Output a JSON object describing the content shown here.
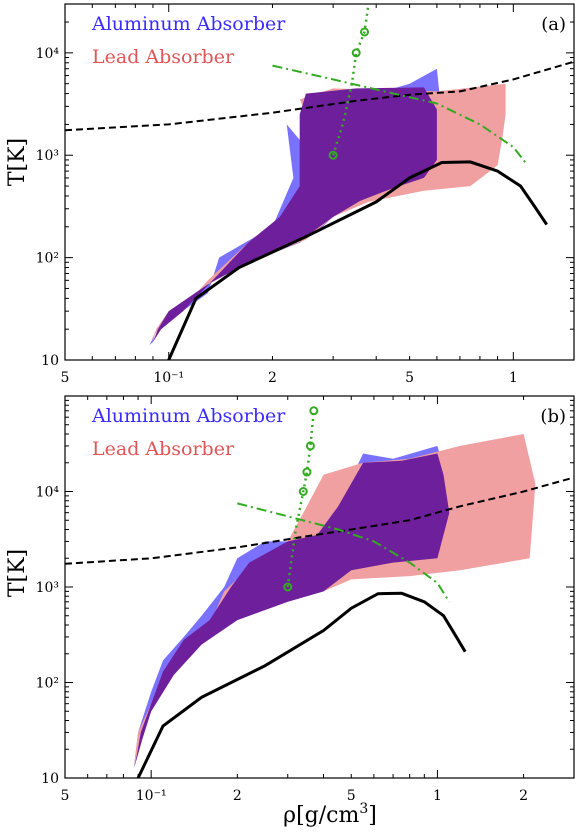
{
  "figure": {
    "xlabel_main": "ρ[g/cm",
    "xlabel_sup": "3",
    "xlabel_close": "]",
    "ylabel": "T[K]"
  },
  "colors": {
    "aluminum": "#7a72ff",
    "lead": "#f0a0a0",
    "overlap": "#6e1f9b",
    "green": "#33aa22",
    "black": "#000000"
  },
  "chart_data": [
    {
      "type": "area",
      "panel_label": "(a)",
      "xscale": "log",
      "yscale": "log",
      "xlim": [
        0.05,
        1.5
      ],
      "ylim": [
        10,
        30000
      ],
      "x_ticks": [
        {
          "v": 0.05,
          "label": "5"
        },
        {
          "v": 0.1,
          "label": "10⁻¹"
        },
        {
          "v": 0.2,
          "label": "2"
        },
        {
          "v": 0.5,
          "label": "5"
        },
        {
          "v": 1.0,
          "label": "1"
        }
      ],
      "y_ticks": [
        {
          "v": 10,
          "label": "10"
        },
        {
          "v": 100,
          "label": "10²"
        },
        {
          "v": 1000,
          "label": "10³"
        },
        {
          "v": 10000,
          "label": "10⁴"
        }
      ],
      "legend": [
        "Aluminum Absorber",
        "Lead Absorber"
      ],
      "regions": [
        {
          "name": "Aluminum Absorber",
          "color_key": "aluminum",
          "points": [
            [
              0.088,
              14
            ],
            [
              0.093,
              20
            ],
            [
              0.105,
              27
            ],
            [
              0.13,
              45
            ],
            [
              0.14,
              100
            ],
            [
              0.2,
              200
            ],
            [
              0.23,
              600
            ],
            [
              0.22,
              2000
            ],
            [
              0.25,
              1200
            ],
            [
              0.28,
              1600
            ],
            [
              0.3,
              1450
            ],
            [
              0.35,
              3500
            ],
            [
              0.5,
              5000
            ],
            [
              0.6,
              7000
            ],
            [
              0.62,
              2400
            ],
            [
              0.6,
              900
            ],
            [
              0.55,
              600
            ],
            [
              0.45,
              480
            ],
            [
              0.36,
              360
            ],
            [
              0.3,
              250
            ],
            [
              0.27,
              180
            ],
            [
              0.24,
              140
            ],
            [
              0.2,
              110
            ],
            [
              0.16,
              80
            ],
            [
              0.13,
              55
            ],
            [
              0.1,
              30
            ],
            [
              0.092,
              20
            ],
            [
              0.09,
              15
            ]
          ]
        },
        {
          "name": "Lead Absorber",
          "color_key": "lead",
          "points": [
            [
              0.088,
              14
            ],
            [
              0.093,
              20
            ],
            [
              0.105,
              27
            ],
            [
              0.13,
              60
            ],
            [
              0.17,
              140
            ],
            [
              0.22,
              280
            ],
            [
              0.25,
              600
            ],
            [
              0.26,
              2000
            ],
            [
              0.24,
              3500
            ],
            [
              0.3,
              4500
            ],
            [
              0.6,
              4200
            ],
            [
              0.95,
              5000
            ],
            [
              0.95,
              2500
            ],
            [
              0.93,
              1500
            ],
            [
              0.9,
              800
            ],
            [
              0.75,
              500
            ],
            [
              0.55,
              450
            ],
            [
              0.38,
              350
            ],
            [
              0.3,
              250
            ],
            [
              0.25,
              150
            ],
            [
              0.2,
              110
            ],
            [
              0.16,
              80
            ],
            [
              0.13,
              55
            ],
            [
              0.1,
              30
            ],
            [
              0.092,
              20
            ]
          ]
        },
        {
          "name": "overlap",
          "color_key": "overlap",
          "points": [
            [
              0.09,
              15
            ],
            [
              0.095,
              20
            ],
            [
              0.11,
              30
            ],
            [
              0.14,
              70
            ],
            [
              0.17,
              140
            ],
            [
              0.21,
              250
            ],
            [
              0.24,
              500
            ],
            [
              0.24,
              2500
            ],
            [
              0.25,
              4000
            ],
            [
              0.35,
              4500
            ],
            [
              0.55,
              4600
            ],
            [
              0.6,
              2800
            ],
            [
              0.6,
              900
            ],
            [
              0.55,
              600
            ],
            [
              0.45,
              480
            ],
            [
              0.36,
              360
            ],
            [
              0.3,
              250
            ],
            [
              0.25,
              160
            ],
            [
              0.2,
              110
            ],
            [
              0.16,
              80
            ],
            [
              0.13,
              55
            ],
            [
              0.1,
              30
            ],
            [
              0.093,
              20
            ]
          ]
        }
      ],
      "lines": [
        {
          "name": "black-solid",
          "style": "solid",
          "color_key": "black",
          "points": [
            [
              0.1,
              10
            ],
            [
              0.12,
              40
            ],
            [
              0.16,
              80
            ],
            [
              0.25,
              160
            ],
            [
              0.4,
              350
            ],
            [
              0.5,
              600
            ],
            [
              0.62,
              850
            ],
            [
              0.75,
              860
            ],
            [
              0.9,
              700
            ],
            [
              1.05,
              500
            ],
            [
              1.15,
              320
            ],
            [
              1.25,
              210
            ]
          ]
        },
        {
          "name": "black-dashed",
          "style": "dashed",
          "color_key": "black",
          "points": [
            [
              0.05,
              1750
            ],
            [
              0.1,
              2000
            ],
            [
              0.2,
              2600
            ],
            [
              0.35,
              3400
            ],
            [
              0.5,
              3900
            ],
            [
              0.7,
              4200
            ],
            [
              1.0,
              5500
            ],
            [
              1.5,
              8200
            ]
          ]
        },
        {
          "name": "green-dashdot",
          "style": "dashdot",
          "color_key": "green",
          "points": [
            [
              0.2,
              7500
            ],
            [
              0.3,
              5500
            ],
            [
              0.45,
              4000
            ],
            [
              0.6,
              3200
            ],
            [
              0.8,
              2000
            ],
            [
              1.0,
              1200
            ],
            [
              1.1,
              800
            ]
          ]
        },
        {
          "name": "green-dotted",
          "style": "dotted",
          "color_key": "green",
          "points": [
            [
              0.3,
              1000
            ],
            [
              0.32,
              2000
            ],
            [
              0.34,
              5000
            ],
            [
              0.35,
              10000
            ],
            [
              0.37,
              16000
            ],
            [
              0.38,
              30000
            ]
          ],
          "markers": [
            [
              0.3,
              1000
            ],
            [
              0.35,
              10000
            ],
            [
              0.37,
              16000
            ]
          ]
        }
      ]
    },
    {
      "type": "area",
      "panel_label": "(b)",
      "xscale": "log",
      "yscale": "log",
      "xlim": [
        0.05,
        3
      ],
      "ylim": [
        10,
        100000
      ],
      "x_ticks": [
        {
          "v": 0.05,
          "label": "5"
        },
        {
          "v": 0.1,
          "label": "10⁻¹"
        },
        {
          "v": 0.2,
          "label": "2"
        },
        {
          "v": 0.5,
          "label": "5"
        },
        {
          "v": 1.0,
          "label": "1"
        },
        {
          "v": 2.0,
          "label": "2"
        }
      ],
      "y_ticks": [
        {
          "v": 10,
          "label": "10"
        },
        {
          "v": 100,
          "label": "10²"
        },
        {
          "v": 1000,
          "label": "10³"
        },
        {
          "v": 10000,
          "label": "10⁴"
        }
      ],
      "legend": [
        "Aluminum Absorber",
        "Lead Absorber"
      ],
      "regions": [
        {
          "name": "Aluminum Absorber",
          "color_key": "aluminum",
          "points": [
            [
              0.087,
              13
            ],
            [
              0.09,
              30
            ],
            [
              0.1,
              80
            ],
            [
              0.11,
              170
            ],
            [
              0.13,
              300
            ],
            [
              0.15,
              500
            ],
            [
              0.18,
              1000
            ],
            [
              0.2,
              2000
            ],
            [
              0.25,
              3000
            ],
            [
              0.32,
              3000
            ],
            [
              0.4,
              4000
            ],
            [
              0.45,
              7000
            ],
            [
              0.55,
              25000
            ],
            [
              0.7,
              22000
            ],
            [
              1.0,
              30000
            ],
            [
              1.05,
              18000
            ],
            [
              1.1,
              6000
            ],
            [
              1.0,
              2000
            ],
            [
              0.7,
              1800
            ],
            [
              0.5,
              1500
            ],
            [
              0.4,
              900
            ],
            [
              0.3,
              700
            ],
            [
              0.2,
              450
            ],
            [
              0.15,
              250
            ],
            [
              0.12,
              120
            ],
            [
              0.1,
              50
            ],
            [
              0.092,
              25
            ],
            [
              0.088,
              14
            ]
          ]
        },
        {
          "name": "Lead Absorber",
          "color_key": "lead",
          "points": [
            [
              0.087,
              13
            ],
            [
              0.09,
              30
            ],
            [
              0.1,
              60
            ],
            [
              0.11,
              110
            ],
            [
              0.13,
              250
            ],
            [
              0.16,
              400
            ],
            [
              0.18,
              900
            ],
            [
              0.22,
              1600
            ],
            [
              0.3,
              3000
            ],
            [
              0.35,
              7000
            ],
            [
              0.4,
              15000
            ],
            [
              0.55,
              20000
            ],
            [
              0.8,
              22000
            ],
            [
              1.2,
              30000
            ],
            [
              2.0,
              40000
            ],
            [
              2.2,
              12000
            ],
            [
              2.1,
              2000
            ],
            [
              1.2,
              1500
            ],
            [
              0.8,
              1300
            ],
            [
              0.5,
              1200
            ],
            [
              0.4,
              900
            ],
            [
              0.3,
              700
            ],
            [
              0.2,
              450
            ],
            [
              0.15,
              250
            ],
            [
              0.12,
              120
            ],
            [
              0.1,
              50
            ],
            [
              0.092,
              25
            ]
          ]
        },
        {
          "name": "overlap",
          "color_key": "overlap",
          "points": [
            [
              0.088,
              14
            ],
            [
              0.092,
              30
            ],
            [
              0.1,
              60
            ],
            [
              0.11,
              130
            ],
            [
              0.13,
              280
            ],
            [
              0.16,
              450
            ],
            [
              0.19,
              1000
            ],
            [
              0.22,
              1800
            ],
            [
              0.3,
              3000
            ],
            [
              0.38,
              3500
            ],
            [
              0.45,
              7000
            ],
            [
              0.55,
              20000
            ],
            [
              0.75,
              21000
            ],
            [
              1.0,
              25000
            ],
            [
              1.05,
              15000
            ],
            [
              1.1,
              6000
            ],
            [
              1.0,
              2000
            ],
            [
              0.7,
              1800
            ],
            [
              0.5,
              1500
            ],
            [
              0.4,
              900
            ],
            [
              0.3,
              700
            ],
            [
              0.2,
              450
            ],
            [
              0.15,
              250
            ],
            [
              0.12,
              120
            ],
            [
              0.1,
              50
            ],
            [
              0.093,
              25
            ]
          ]
        }
      ],
      "lines": [
        {
          "name": "black-solid",
          "style": "solid",
          "color_key": "black",
          "points": [
            [
              0.09,
              10
            ],
            [
              0.11,
              35
            ],
            [
              0.15,
              70
            ],
            [
              0.25,
              150
            ],
            [
              0.4,
              350
            ],
            [
              0.5,
              600
            ],
            [
              0.62,
              850
            ],
            [
              0.75,
              860
            ],
            [
              0.9,
              700
            ],
            [
              1.05,
              500
            ],
            [
              1.15,
              320
            ],
            [
              1.25,
              210
            ]
          ]
        },
        {
          "name": "black-dashed",
          "style": "dashed",
          "color_key": "black",
          "points": [
            [
              0.05,
              1750
            ],
            [
              0.1,
              2000
            ],
            [
              0.2,
              2600
            ],
            [
              0.35,
              3400
            ],
            [
              0.5,
              4000
            ],
            [
              0.8,
              5000
            ],
            [
              1.2,
              7000
            ],
            [
              2.0,
              10000
            ],
            [
              3.0,
              14000
            ]
          ]
        },
        {
          "name": "green-dashdot",
          "style": "dashdot",
          "color_key": "green",
          "points": [
            [
              0.2,
              7500
            ],
            [
              0.3,
              5500
            ],
            [
              0.45,
              4000
            ],
            [
              0.6,
              3000
            ],
            [
              0.8,
              1800
            ],
            [
              1.0,
              1100
            ],
            [
              1.1,
              700
            ]
          ]
        },
        {
          "name": "green-dotted",
          "style": "dotted",
          "color_key": "green",
          "points": [
            [
              0.3,
              1000
            ],
            [
              0.32,
              4000
            ],
            [
              0.34,
              10000
            ],
            [
              0.35,
              16000
            ],
            [
              0.36,
              30000
            ],
            [
              0.37,
              70000
            ]
          ],
          "markers": [
            [
              0.3,
              1000
            ],
            [
              0.34,
              10000
            ],
            [
              0.35,
              16000
            ],
            [
              0.36,
              30000
            ],
            [
              0.37,
              70000
            ]
          ]
        }
      ]
    }
  ]
}
